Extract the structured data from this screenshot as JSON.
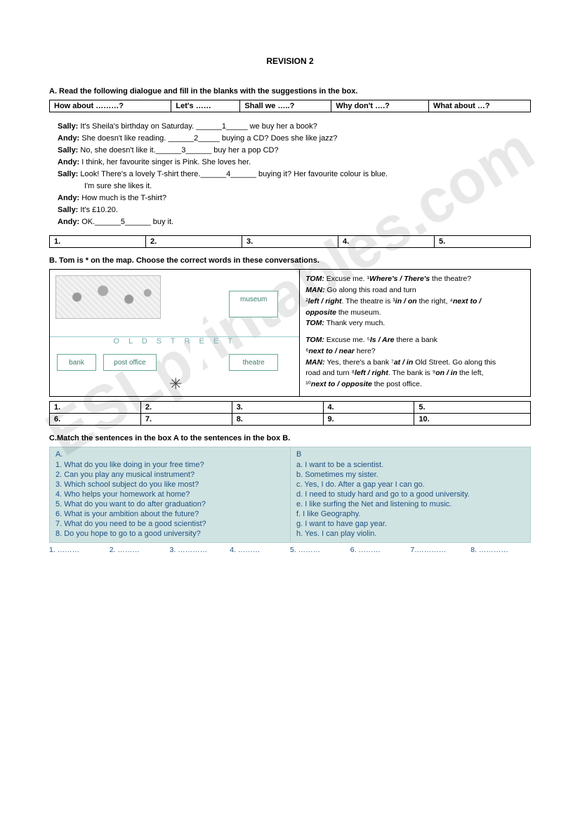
{
  "title": "REVISION 2",
  "watermark": "ESLprintables.com",
  "sectionA": {
    "heading": "A. Read the following dialogue and fill in the blanks with the suggestions in the box.",
    "suggestions": [
      "How about ………?",
      "Let's ……",
      "Shall we …..?",
      "Why don't ….?",
      "What about …?"
    ],
    "dialogue": [
      {
        "sp": "Sally:",
        "txt": "It's Sheila's birthday on Saturday. ______1_____ we buy her a book?"
      },
      {
        "sp": "Andy:",
        "txt": "She doesn't like reading. ______2_____ buying a CD? Does she like jazz?"
      },
      {
        "sp": "Sally:",
        "txt": "No, she doesn't like it.______3______ buy her a pop CD?"
      },
      {
        "sp": "Andy:",
        "txt": "I think, her favourite singer is Pink. She loves her."
      },
      {
        "sp": "Sally:",
        "txt": "Look! There's a lovely T-shirt there.______4______ buying it? Her favourite colour is blue."
      },
      {
        "sp": "",
        "txt": "I'm sure she likes it."
      },
      {
        "sp": "Andy:",
        "txt": "How much is the T-shirt?"
      },
      {
        "sp": "Sally:",
        "txt": "It's £10.20."
      },
      {
        "sp": "Andy:",
        "txt": "OK.______5______ buy it."
      }
    ],
    "answers": [
      "1.",
      "2.",
      "3.",
      "4.",
      "5."
    ]
  },
  "sectionB": {
    "heading": "B. Tom is * on the map. Choose the correct words in these conversations.",
    "street_label": "O L D   S T R E E T",
    "buildings": {
      "museum": "museum",
      "bank": "bank",
      "post": "post office",
      "theatre": "theatre"
    },
    "conv": [
      {
        "sp": "TOM:",
        "parts": [
          "Excuse me. ",
          "¹",
          "Where's / There's",
          " the theatre?"
        ]
      },
      {
        "sp": "MAN:",
        "parts": [
          "Go along this road and turn"
        ]
      },
      {
        "sp": "",
        "parts": [
          "²",
          "left / right",
          ". The theatre is ",
          "³",
          "in / on",
          " the right, ",
          "⁴",
          "next to /"
        ]
      },
      {
        "sp": "",
        "parts": [
          "",
          "opposite",
          " the museum."
        ]
      },
      {
        "sp": "TOM:",
        "parts": [
          "Thank very much."
        ]
      },
      {
        "gap": true
      },
      {
        "sp": "TOM:",
        "parts": [
          "Excuse me. ",
          "⁵",
          "Is / Are",
          " there a bank"
        ]
      },
      {
        "sp": "",
        "parts": [
          "⁶",
          "next to / near",
          " here?"
        ]
      },
      {
        "sp": "MAN:",
        "parts": [
          "Yes, there's a bank ",
          "⁷",
          "at / in",
          " Old Street. Go along this"
        ]
      },
      {
        "sp": "",
        "parts": [
          "road and turn  ",
          "⁸",
          "left / right",
          ". The bank is ",
          "⁹",
          "on / in",
          " the left,"
        ]
      },
      {
        "sp": "",
        "parts": [
          "¹⁰",
          "next to / opposite",
          " the post office."
        ]
      }
    ],
    "answers": [
      "1.",
      "2.",
      "3.",
      "4.",
      "5.",
      "6.",
      "7.",
      "8.",
      "9.",
      "10."
    ]
  },
  "sectionC": {
    "heading": "C.Match the sentences in the box A to the sentences in the box B.",
    "colA_head": "A.",
    "colB_head": "B",
    "colA": [
      "1. What do you like doing in your free time?",
      "2. Can you play any musical instrument?",
      "3. Which school subject do you like most?",
      "4. Who helps your homework at home?",
      "5. What do you want to do after graduation?",
      "6. What is your ambition about the future?",
      "7. What do you need to be a good scientist?",
      "8. Do you hope to go to a good university?"
    ],
    "colB": [
      "a. I want to be a scientist.",
      "b. Sometimes my sister.",
      "c. Yes, I do. After a gap year I can go.",
      "d. I need to study hard and go to a good university.",
      "e. I like surfing the Net and listening to music.",
      "f. I like Geography.",
      "g. I want to have gap year.",
      "h. Yes. I can play violin."
    ],
    "dots": [
      "1. ………",
      "2. ………",
      "3. …………",
      "4. ………",
      "5. ………",
      "6. ………",
      "7.…………",
      "8. …………"
    ]
  }
}
